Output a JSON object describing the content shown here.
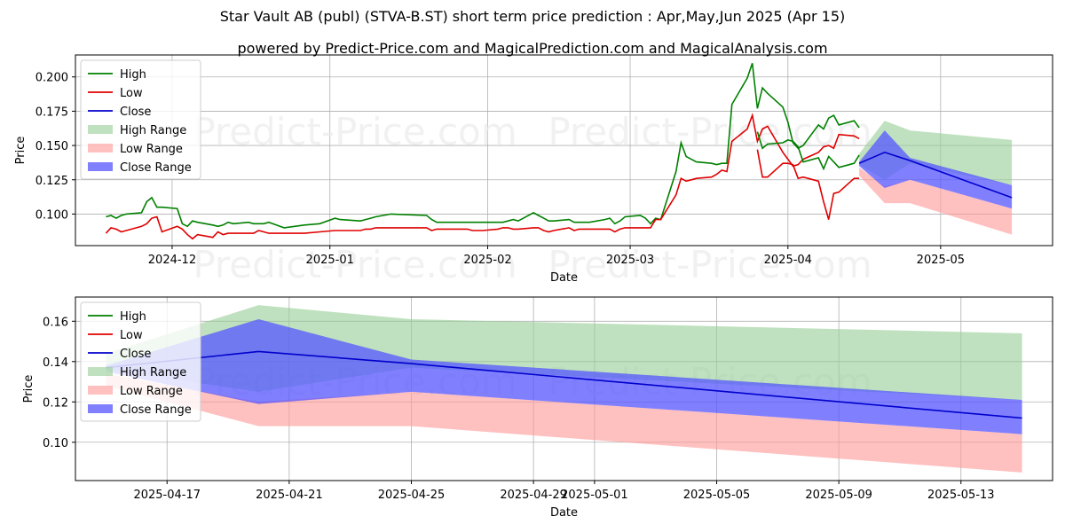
{
  "title": "Star Vault AB (publ) (STVA-B.ST) short term price prediction : Apr,May,Jun 2025 (Apr 15)",
  "subtitle": "powered by Predict-Price.com and MagicalPrediction.com and MagicalAnalysis.com",
  "watermark": "Predict-Price.com",
  "colors": {
    "high": "#008000",
    "low": "#e00000",
    "close": "#0000cc",
    "high_range": "#98cf98",
    "low_range": "#ff9999",
    "close_range": "#5555ff"
  },
  "chart_data": [
    {
      "type": "line",
      "xlabel": "Date",
      "ylabel": "Price",
      "xlim": [
        "2024-11-12",
        "2025-05-23"
      ],
      "ylim": [
        0.077,
        0.216
      ],
      "xticks": [
        "2024-12-01",
        "2025-01-01",
        "2025-02-01",
        "2025-03-01",
        "2025-04-01",
        "2025-05-01"
      ],
      "xtick_labels": [
        "2024-12",
        "2025-01",
        "2025-02",
        "2025-03",
        "2025-04",
        "2025-05"
      ],
      "yticks": [
        0.1,
        0.125,
        0.15,
        0.175,
        0.2
      ],
      "ytick_labels": [
        "0.100",
        "0.125",
        "0.150",
        "0.175",
        "0.200"
      ],
      "grid": true,
      "legend_position": "top-left",
      "legend": [
        "High",
        "Low",
        "Close",
        "High Range",
        "Low Range",
        "Close Range"
      ],
      "series": [
        {
          "name": "High",
          "x": [
            "2024-11-18",
            "2024-11-19",
            "2024-11-20",
            "2024-11-21",
            "2024-11-22",
            "2024-11-25",
            "2024-11-26",
            "2024-11-27",
            "2024-11-28",
            "2024-11-29",
            "2024-12-02",
            "2024-12-03",
            "2024-12-04",
            "2024-12-05",
            "2024-12-06",
            "2024-12-09",
            "2024-12-10",
            "2024-12-11",
            "2024-12-12",
            "2024-12-13",
            "2024-12-16",
            "2024-12-17",
            "2024-12-18",
            "2024-12-19",
            "2024-12-20",
            "2024-12-23",
            "2024-12-27",
            "2024-12-30",
            "2025-01-02",
            "2025-01-03",
            "2025-01-07",
            "2025-01-08",
            "2025-01-09",
            "2025-01-10",
            "2025-01-13",
            "2025-01-20",
            "2025-01-21",
            "2025-01-22",
            "2025-01-23",
            "2025-01-24",
            "2025-01-27",
            "2025-01-28",
            "2025-01-29",
            "2025-01-30",
            "2025-01-31",
            "2025-02-03",
            "2025-02-04",
            "2025-02-05",
            "2025-02-06",
            "2025-02-07",
            "2025-02-10",
            "2025-02-11",
            "2025-02-12",
            "2025-02-13",
            "2025-02-14",
            "2025-02-17",
            "2025-02-18",
            "2025-02-19",
            "2025-02-20",
            "2025-02-21",
            "2025-02-24",
            "2025-02-25",
            "2025-02-26",
            "2025-02-27",
            "2025-02-28",
            "2025-03-03",
            "2025-03-04",
            "2025-03-05",
            "2025-03-06",
            "2025-03-07",
            "2025-03-10",
            "2025-03-11",
            "2025-03-12",
            "2025-03-13",
            "2025-03-14",
            "2025-03-17",
            "2025-03-18",
            "2025-03-19",
            "2025-03-20",
            "2025-03-21",
            "2025-03-24",
            "2025-03-25",
            "2025-03-26",
            "2025-03-27",
            "2025-03-28",
            "2025-03-31",
            "2025-04-01",
            "2025-04-02",
            "2025-04-03",
            "2025-04-04",
            "2025-04-07",
            "2025-04-08",
            "2025-04-09",
            "2025-04-10",
            "2025-04-11",
            "2025-04-14",
            "2025-04-15"
          ],
          "values": [
            0.098,
            0.099,
            0.097,
            0.099,
            0.1,
            0.101,
            0.109,
            0.112,
            0.105,
            0.105,
            0.104,
            0.093,
            0.091,
            0.095,
            0.094,
            0.092,
            0.091,
            0.092,
            0.094,
            0.093,
            0.094,
            0.093,
            0.093,
            0.093,
            0.094,
            0.09,
            0.092,
            0.093,
            0.097,
            0.096,
            0.095,
            0.096,
            0.097,
            0.098,
            0.1,
            0.099,
            0.096,
            0.094,
            0.094,
            0.094,
            0.094,
            0.094,
            0.094,
            0.094,
            0.094,
            0.094,
            0.094,
            0.095,
            0.096,
            0.095,
            0.101,
            0.099,
            0.097,
            0.095,
            0.095,
            0.096,
            0.094,
            0.094,
            0.094,
            0.094,
            0.096,
            0.097,
            0.093,
            0.095,
            0.098,
            0.099,
            0.097,
            0.093,
            0.097,
            0.096,
            0.131,
            0.152,
            0.142,
            0.14,
            0.138,
            0.137,
            0.136,
            0.137,
            0.137,
            0.18,
            0.199,
            0.21,
            0.177,
            0.192,
            0.188,
            0.178,
            0.167,
            0.152,
            0.148,
            0.15,
            0.165,
            0.162,
            0.17,
            0.172,
            0.165,
            0.168,
            0.163
          ]
        },
        {
          "name": "Low",
          "x": [
            "2024-11-18",
            "2024-11-19",
            "2024-11-20",
            "2024-11-21",
            "2024-11-22",
            "2024-11-25",
            "2024-11-26",
            "2024-11-27",
            "2024-11-28",
            "2024-11-29",
            "2024-12-02",
            "2024-12-03",
            "2024-12-04",
            "2024-12-05",
            "2024-12-06",
            "2024-12-09",
            "2024-12-10",
            "2024-12-11",
            "2024-12-12",
            "2024-12-13",
            "2024-12-16",
            "2024-12-17",
            "2024-12-18",
            "2024-12-19",
            "2024-12-20",
            "2024-12-23",
            "2024-12-27",
            "2024-12-30",
            "2025-01-02",
            "2025-01-03",
            "2025-01-07",
            "2025-01-08",
            "2025-01-09",
            "2025-01-10",
            "2025-01-13",
            "2025-01-20",
            "2025-01-21",
            "2025-01-22",
            "2025-01-23",
            "2025-01-24",
            "2025-01-27",
            "2025-01-28",
            "2025-01-29",
            "2025-01-30",
            "2025-01-31",
            "2025-02-03",
            "2025-02-04",
            "2025-02-05",
            "2025-02-06",
            "2025-02-07",
            "2025-02-10",
            "2025-02-11",
            "2025-02-12",
            "2025-02-13",
            "2025-02-14",
            "2025-02-17",
            "2025-02-18",
            "2025-02-19",
            "2025-02-20",
            "2025-02-21",
            "2025-02-24",
            "2025-02-25",
            "2025-02-26",
            "2025-02-27",
            "2025-02-28",
            "2025-03-03",
            "2025-03-04",
            "2025-03-05",
            "2025-03-06",
            "2025-03-07",
            "2025-03-10",
            "2025-03-11",
            "2025-03-12",
            "2025-03-13",
            "2025-03-14",
            "2025-03-17",
            "2025-03-18",
            "2025-03-19",
            "2025-03-20",
            "2025-03-21",
            "2025-03-24",
            "2025-03-25",
            "2025-03-26",
            "2025-03-27",
            "2025-03-28",
            "2025-03-31",
            "2025-04-01",
            "2025-04-02",
            "2025-04-03",
            "2025-04-04",
            "2025-04-07",
            "2025-04-08",
            "2025-04-09",
            "2025-04-10",
            "2025-04-11",
            "2025-04-14",
            "2025-04-15"
          ],
          "values": [
            0.086,
            0.09,
            0.089,
            0.087,
            0.088,
            0.091,
            0.093,
            0.097,
            0.098,
            0.087,
            0.091,
            0.089,
            0.085,
            0.082,
            0.085,
            0.083,
            0.087,
            0.085,
            0.086,
            0.086,
            0.086,
            0.086,
            0.088,
            0.087,
            0.086,
            0.086,
            0.086,
            0.087,
            0.088,
            0.088,
            0.088,
            0.089,
            0.089,
            0.09,
            0.09,
            0.09,
            0.088,
            0.089,
            0.089,
            0.089,
            0.089,
            0.089,
            0.088,
            0.088,
            0.088,
            0.089,
            0.09,
            0.09,
            0.089,
            0.089,
            0.09,
            0.09,
            0.088,
            0.087,
            0.088,
            0.09,
            0.088,
            0.089,
            0.089,
            0.089,
            0.089,
            0.089,
            0.087,
            0.089,
            0.09,
            0.09,
            0.09,
            0.09,
            0.096,
            0.096,
            0.114,
            0.126,
            0.124,
            0.125,
            0.126,
            0.127,
            0.129,
            0.132,
            0.131,
            0.153,
            0.162,
            0.172,
            0.153,
            0.162,
            0.164,
            0.145,
            0.14,
            0.135,
            0.136,
            0.14,
            0.145,
            0.149,
            0.15,
            0.148,
            0.158,
            0.157,
            0.155
          ]
        },
        {
          "name": "High-b",
          "x": [
            "2025-03-26",
            "2025-03-27",
            "2025-03-28",
            "2025-03-31",
            "2025-04-01",
            "2025-04-02",
            "2025-04-03",
            "2025-04-04",
            "2025-04-07",
            "2025-04-08",
            "2025-04-09",
            "2025-04-10",
            "2025-04-11",
            "2025-04-14",
            "2025-04-15"
          ],
          "values": [
            0.16,
            0.148,
            0.151,
            0.152,
            0.154,
            0.153,
            0.149,
            0.138,
            0.141,
            0.133,
            0.142,
            0.138,
            0.134,
            0.137,
            0.143
          ]
        },
        {
          "name": "Low-b",
          "x": [
            "2025-03-26",
            "2025-03-27",
            "2025-03-28",
            "2025-03-31",
            "2025-04-01",
            "2025-04-02",
            "2025-04-03",
            "2025-04-04",
            "2025-04-07",
            "2025-04-08",
            "2025-04-09",
            "2025-04-10",
            "2025-04-11",
            "2025-04-14",
            "2025-04-15"
          ],
          "values": [
            0.147,
            0.127,
            0.127,
            0.137,
            0.137,
            0.136,
            0.126,
            0.127,
            0.124,
            0.109,
            0.096,
            0.115,
            0.116,
            0.126,
            0.126
          ]
        }
      ],
      "forecast": {
        "x": [
          "2025-04-15",
          "2025-04-20",
          "2025-04-25",
          "2025-05-15"
        ],
        "close": [
          0.137,
          0.145,
          0.139,
          0.112
        ],
        "high_range_top": [
          0.144,
          0.168,
          0.161,
          0.154
        ],
        "high_range_bottom": [
          0.136,
          0.125,
          0.137,
          0.121
        ],
        "low_range_top": [
          0.134,
          0.12,
          0.125,
          0.104
        ],
        "low_range_bottom": [
          0.128,
          0.108,
          0.108,
          0.085
        ],
        "close_range_top": [
          0.138,
          0.161,
          0.141,
          0.121
        ],
        "close_range_bottom": [
          0.135,
          0.119,
          0.125,
          0.104
        ]
      }
    },
    {
      "type": "line",
      "xlabel": "Date",
      "ylabel": "Price",
      "xlim": [
        "2025-04-14",
        "2025-05-16"
      ],
      "ylim": [
        0.081,
        0.172
      ],
      "xticks": [
        "2025-04-17",
        "2025-04-21",
        "2025-04-25",
        "2025-04-29",
        "2025-05-01",
        "2025-05-05",
        "2025-05-09",
        "2025-05-13"
      ],
      "xtick_labels": [
        "2025-04-17",
        "2025-04-21",
        "2025-04-25",
        "2025-04-29",
        "2025-05-01",
        "2025-05-05",
        "2025-05-09",
        "2025-05-13"
      ],
      "yticks": [
        0.1,
        0.12,
        0.14,
        0.16
      ],
      "ytick_labels": [
        "0.10",
        "0.12",
        "0.14",
        "0.16"
      ],
      "grid": true,
      "legend_position": "top-left",
      "legend": [
        "High",
        "Low",
        "Close",
        "High Range",
        "Low Range",
        "Close Range"
      ],
      "forecast": {
        "x": [
          "2025-04-15",
          "2025-04-20",
          "2025-04-25",
          "2025-05-15"
        ],
        "close": [
          0.137,
          0.145,
          0.139,
          0.112
        ],
        "high_range_top": [
          0.144,
          0.168,
          0.161,
          0.154
        ],
        "high_range_bottom": [
          0.136,
          0.125,
          0.137,
          0.121
        ],
        "low_range_top": [
          0.134,
          0.12,
          0.125,
          0.104
        ],
        "low_range_bottom": [
          0.128,
          0.108,
          0.108,
          0.085
        ],
        "close_range_top": [
          0.138,
          0.161,
          0.141,
          0.121
        ],
        "close_range_bottom": [
          0.135,
          0.119,
          0.125,
          0.104
        ]
      }
    }
  ]
}
